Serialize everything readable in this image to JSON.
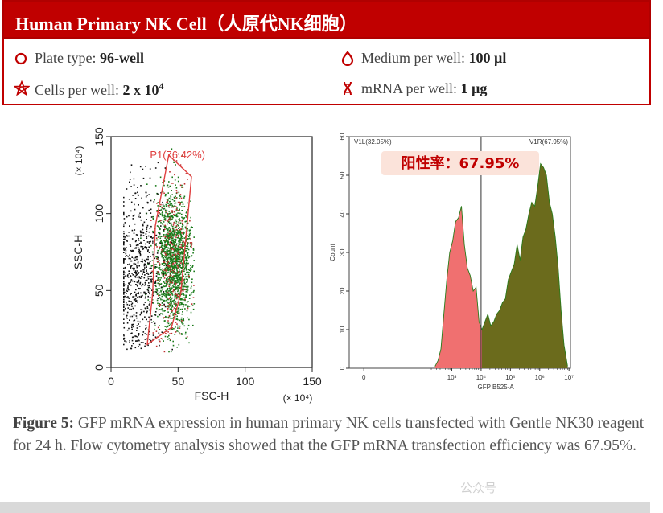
{
  "header": {
    "title": "Human Primary NK Cell（人原代NK细胞）"
  },
  "info": {
    "plate_label": "Plate type:",
    "plate_value": "96-well",
    "medium_label": "Medium per well:",
    "medium_value": "100 µl",
    "cells_label": "Cells per well:",
    "cells_value": "2 x 10",
    "cells_exp": "4",
    "mrna_label": "mRNA per well:",
    "mrna_value": "1 µg"
  },
  "colors": {
    "brand_red": "#c00000",
    "gate_red": "#e04040",
    "histogram_red": "#f07070",
    "histogram_olive": "#6b6b1c",
    "histogram_line": "#2a7a1a"
  },
  "chart_data": [
    {
      "type": "scatter",
      "xlabel": "FSC-H",
      "ylabel": "SSC-H",
      "x_multiplier": "(× 10⁴)",
      "y_multiplier": "(× 10⁴)",
      "xlim": [
        0,
        150
      ],
      "ylim": [
        0,
        150
      ],
      "x_ticks": [
        "0",
        "50",
        "100",
        "150"
      ],
      "y_ticks": [
        "0",
        "50",
        "100",
        "150"
      ],
      "gate": {
        "label": "P1(76.42%)",
        "polygon": [
          [
            43,
            138
          ],
          [
            60,
            124
          ],
          [
            52,
            48
          ],
          [
            45,
            26
          ],
          [
            27,
            15
          ],
          [
            31,
            48
          ],
          [
            33,
            92
          ]
        ]
      },
      "populations": [
        {
          "name": "gated",
          "color": "#1a7a1a",
          "x_mean": 46,
          "x_sd": 7,
          "y_mean": 69,
          "y_sd": 22,
          "n": 1600
        },
        {
          "name": "gated-red",
          "color": "#c03030",
          "x_mean": 46,
          "x_sd": 7,
          "y_mean": 69,
          "y_sd": 24,
          "n": 260
        },
        {
          "name": "debris",
          "color": "#111111",
          "x_mean": 20,
          "x_sd": 9,
          "y_mean": 62,
          "y_sd": 28,
          "n": 650
        }
      ]
    },
    {
      "type": "area",
      "xlabel": "GFP B525-A",
      "ylabel": "Count",
      "x_scale": "log",
      "xlim": [
        -0.5,
        7.05
      ],
      "ylim": [
        0,
        60
      ],
      "x_ticks": [
        {
          "v": 0,
          "label": "0"
        },
        {
          "v": 3,
          "label": "10³"
        },
        {
          "v": 4,
          "label": "10⁴"
        },
        {
          "v": 5,
          "label": "10⁵"
        },
        {
          "v": 6,
          "label": "10⁶"
        },
        {
          "v": 7,
          "label": "10⁷"
        }
      ],
      "y_ticks": [
        "0",
        "10",
        "20",
        "30",
        "40",
        "50",
        "60"
      ],
      "gate_x": 4.0,
      "left_gate_label": "V1L(32.05%)",
      "right_gate_label": "V1R(67.95%)",
      "annotation": "阳性率：67.95%",
      "bins_x": [
        2.43,
        2.53,
        2.63,
        2.73,
        2.83,
        2.93,
        3.03,
        3.13,
        3.23,
        3.33,
        3.43,
        3.53,
        3.63,
        3.73,
        3.83,
        3.93,
        4.03,
        4.13,
        4.23,
        4.33,
        4.43,
        4.53,
        4.63,
        4.73,
        4.83,
        4.93,
        5.03,
        5.13,
        5.23,
        5.33,
        5.43,
        5.53,
        5.63,
        5.73,
        5.83,
        5.93,
        6.03,
        6.13,
        6.23,
        6.33,
        6.43,
        6.53,
        6.63,
        6.73,
        6.83,
        6.95
      ],
      "counts": [
        0.5,
        2,
        5,
        14,
        23,
        30,
        33,
        38,
        39,
        42,
        32,
        26,
        24,
        20,
        21,
        12,
        10,
        12,
        14,
        11,
        12,
        14,
        15,
        17,
        18,
        23,
        25,
        27,
        32,
        28,
        34,
        36,
        40,
        43,
        42,
        47,
        53,
        52,
        50,
        43,
        40,
        34,
        26,
        15,
        6,
        0.5
      ]
    }
  ],
  "caption": {
    "bold": "Figure 5:",
    "text": " GFP mRNA expression in human primary NK cells transfected with Gentle NK30 reagent for 24 h. Flow cytometry analysis showed that the GFP mRNA transfection efficiency was 67.95%."
  },
  "watermark": "公众号"
}
